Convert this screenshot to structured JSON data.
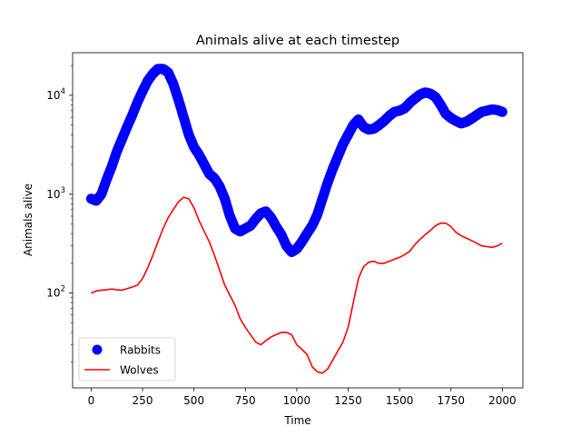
{
  "chart_data": {
    "type": "line",
    "title": "Animals alive at each timestep",
    "xlabel": "Time",
    "ylabel": "Animals alive",
    "xlim": [
      -90,
      2100
    ],
    "ylim": [
      11,
      27000
    ],
    "yscale": "log",
    "grid": false,
    "legend_position": "lower-left",
    "x_ticks": [
      0,
      250,
      500,
      750,
      1000,
      1250,
      1500,
      1750,
      2000
    ],
    "y_ticks": [
      {
        "value": 100,
        "base": "10",
        "exp": "2"
      },
      {
        "value": 1000,
        "base": "10",
        "exp": "3"
      },
      {
        "value": 10000,
        "base": "10",
        "exp": "4"
      }
    ],
    "series": [
      {
        "name": "Rabbits",
        "style": "markers",
        "color": "#0000ff",
        "points": [
          [
            0,
            900
          ],
          [
            25,
            860
          ],
          [
            50,
            1000
          ],
          [
            75,
            1400
          ],
          [
            100,
            1900
          ],
          [
            125,
            2700
          ],
          [
            150,
            3600
          ],
          [
            175,
            4800
          ],
          [
            200,
            6300
          ],
          [
            225,
            8500
          ],
          [
            250,
            11000
          ],
          [
            275,
            14000
          ],
          [
            300,
            16500
          ],
          [
            325,
            18500
          ],
          [
            350,
            18500
          ],
          [
            375,
            17000
          ],
          [
            400,
            13000
          ],
          [
            425,
            9000
          ],
          [
            450,
            6000
          ],
          [
            475,
            4000
          ],
          [
            500,
            3000
          ],
          [
            525,
            2500
          ],
          [
            550,
            2000
          ],
          [
            575,
            1600
          ],
          [
            600,
            1450
          ],
          [
            625,
            1200
          ],
          [
            650,
            900
          ],
          [
            675,
            600
          ],
          [
            700,
            450
          ],
          [
            725,
            420
          ],
          [
            750,
            450
          ],
          [
            775,
            480
          ],
          [
            800,
            560
          ],
          [
            825,
            640
          ],
          [
            850,
            670
          ],
          [
            875,
            580
          ],
          [
            900,
            470
          ],
          [
            925,
            390
          ],
          [
            950,
            300
          ],
          [
            975,
            260
          ],
          [
            1000,
            280
          ],
          [
            1025,
            330
          ],
          [
            1050,
            400
          ],
          [
            1075,
            480
          ],
          [
            1100,
            620
          ],
          [
            1125,
            900
          ],
          [
            1150,
            1300
          ],
          [
            1175,
            1800
          ],
          [
            1200,
            2400
          ],
          [
            1225,
            3200
          ],
          [
            1250,
            4000
          ],
          [
            1275,
            5000
          ],
          [
            1300,
            5700
          ],
          [
            1325,
            4800
          ],
          [
            1350,
            4500
          ],
          [
            1375,
            4600
          ],
          [
            1400,
            5000
          ],
          [
            1425,
            5500
          ],
          [
            1450,
            6200
          ],
          [
            1475,
            6800
          ],
          [
            1500,
            7000
          ],
          [
            1525,
            7400
          ],
          [
            1550,
            8400
          ],
          [
            1575,
            9300
          ],
          [
            1600,
            10200
          ],
          [
            1625,
            10700
          ],
          [
            1650,
            10400
          ],
          [
            1675,
            9600
          ],
          [
            1700,
            8000
          ],
          [
            1725,
            6500
          ],
          [
            1750,
            5900
          ],
          [
            1775,
            5500
          ],
          [
            1800,
            5200
          ],
          [
            1825,
            5400
          ],
          [
            1850,
            5800
          ],
          [
            1875,
            6300
          ],
          [
            1900,
            6800
          ],
          [
            1925,
            7000
          ],
          [
            1950,
            7200
          ],
          [
            1975,
            7100
          ],
          [
            2000,
            6800
          ]
        ]
      },
      {
        "name": "Wolves",
        "style": "line",
        "color": "#ff0000",
        "points": [
          [
            0,
            100
          ],
          [
            25,
            105
          ],
          [
            50,
            107
          ],
          [
            75,
            108
          ],
          [
            100,
            110
          ],
          [
            125,
            108
          ],
          [
            150,
            107
          ],
          [
            175,
            111
          ],
          [
            200,
            115
          ],
          [
            225,
            120
          ],
          [
            250,
            140
          ],
          [
            275,
            180
          ],
          [
            300,
            240
          ],
          [
            325,
            330
          ],
          [
            350,
            450
          ],
          [
            375,
            580
          ],
          [
            400,
            700
          ],
          [
            425,
            840
          ],
          [
            450,
            930
          ],
          [
            475,
            900
          ],
          [
            500,
            730
          ],
          [
            525,
            540
          ],
          [
            550,
            420
          ],
          [
            575,
            330
          ],
          [
            600,
            240
          ],
          [
            625,
            170
          ],
          [
            650,
            120
          ],
          [
            675,
            95
          ],
          [
            700,
            75
          ],
          [
            725,
            55
          ],
          [
            750,
            45
          ],
          [
            775,
            38
          ],
          [
            800,
            32
          ],
          [
            825,
            30
          ],
          [
            850,
            33
          ],
          [
            875,
            36
          ],
          [
            900,
            38
          ],
          [
            925,
            40
          ],
          [
            950,
            40
          ],
          [
            975,
            38
          ],
          [
            1000,
            30
          ],
          [
            1025,
            27
          ],
          [
            1050,
            24
          ],
          [
            1075,
            18
          ],
          [
            1100,
            16
          ],
          [
            1125,
            15.5
          ],
          [
            1150,
            17
          ],
          [
            1175,
            21
          ],
          [
            1200,
            26
          ],
          [
            1225,
            32
          ],
          [
            1250,
            45
          ],
          [
            1275,
            80
          ],
          [
            1300,
            140
          ],
          [
            1325,
            185
          ],
          [
            1350,
            205
          ],
          [
            1375,
            210
          ],
          [
            1400,
            200
          ],
          [
            1425,
            200
          ],
          [
            1450,
            210
          ],
          [
            1475,
            220
          ],
          [
            1500,
            230
          ],
          [
            1525,
            245
          ],
          [
            1550,
            265
          ],
          [
            1575,
            310
          ],
          [
            1600,
            350
          ],
          [
            1625,
            390
          ],
          [
            1650,
            430
          ],
          [
            1675,
            480
          ],
          [
            1700,
            510
          ],
          [
            1725,
            510
          ],
          [
            1750,
            470
          ],
          [
            1775,
            410
          ],
          [
            1800,
            380
          ],
          [
            1825,
            360
          ],
          [
            1850,
            340
          ],
          [
            1875,
            320
          ],
          [
            1900,
            300
          ],
          [
            1925,
            295
          ],
          [
            1950,
            290
          ],
          [
            1975,
            300
          ],
          [
            2000,
            320
          ]
        ]
      }
    ]
  }
}
